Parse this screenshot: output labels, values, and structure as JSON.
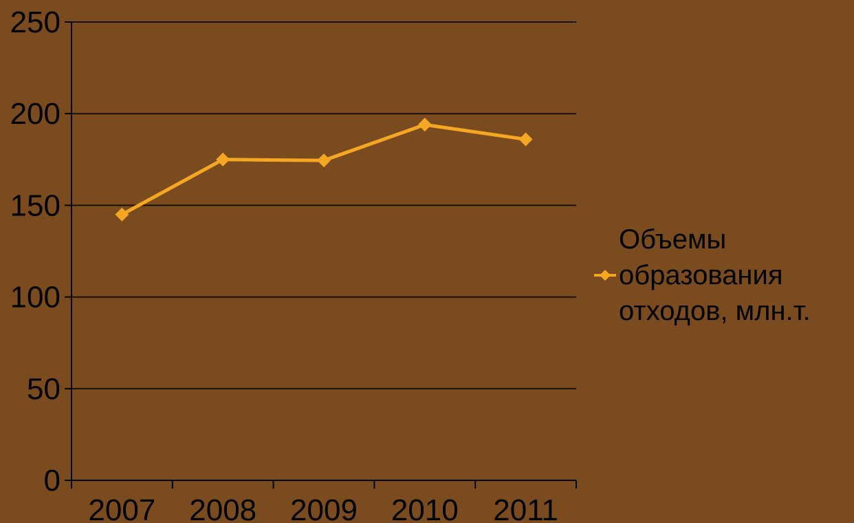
{
  "chart_data": {
    "type": "line",
    "categories": [
      "2007",
      "2008",
      "2009",
      "2010",
      "2011"
    ],
    "series": [
      {
        "name": "Объемы образования отходов, млн.т.",
        "values": [
          145,
          175,
          174.5,
          194,
          186
        ],
        "color": "#f5a623"
      }
    ],
    "y_ticks": [
      0,
      50,
      100,
      150,
      200,
      250
    ],
    "ylim": [
      0,
      250
    ],
    "grid": true,
    "legend_position": "right",
    "background_color": "#7a4b1e",
    "axis_color": "#000000",
    "gridline_color": "#1a0f05"
  },
  "legend": {
    "lines": [
      "Объемы",
      "образования",
      "отходов, млн.т."
    ]
  }
}
